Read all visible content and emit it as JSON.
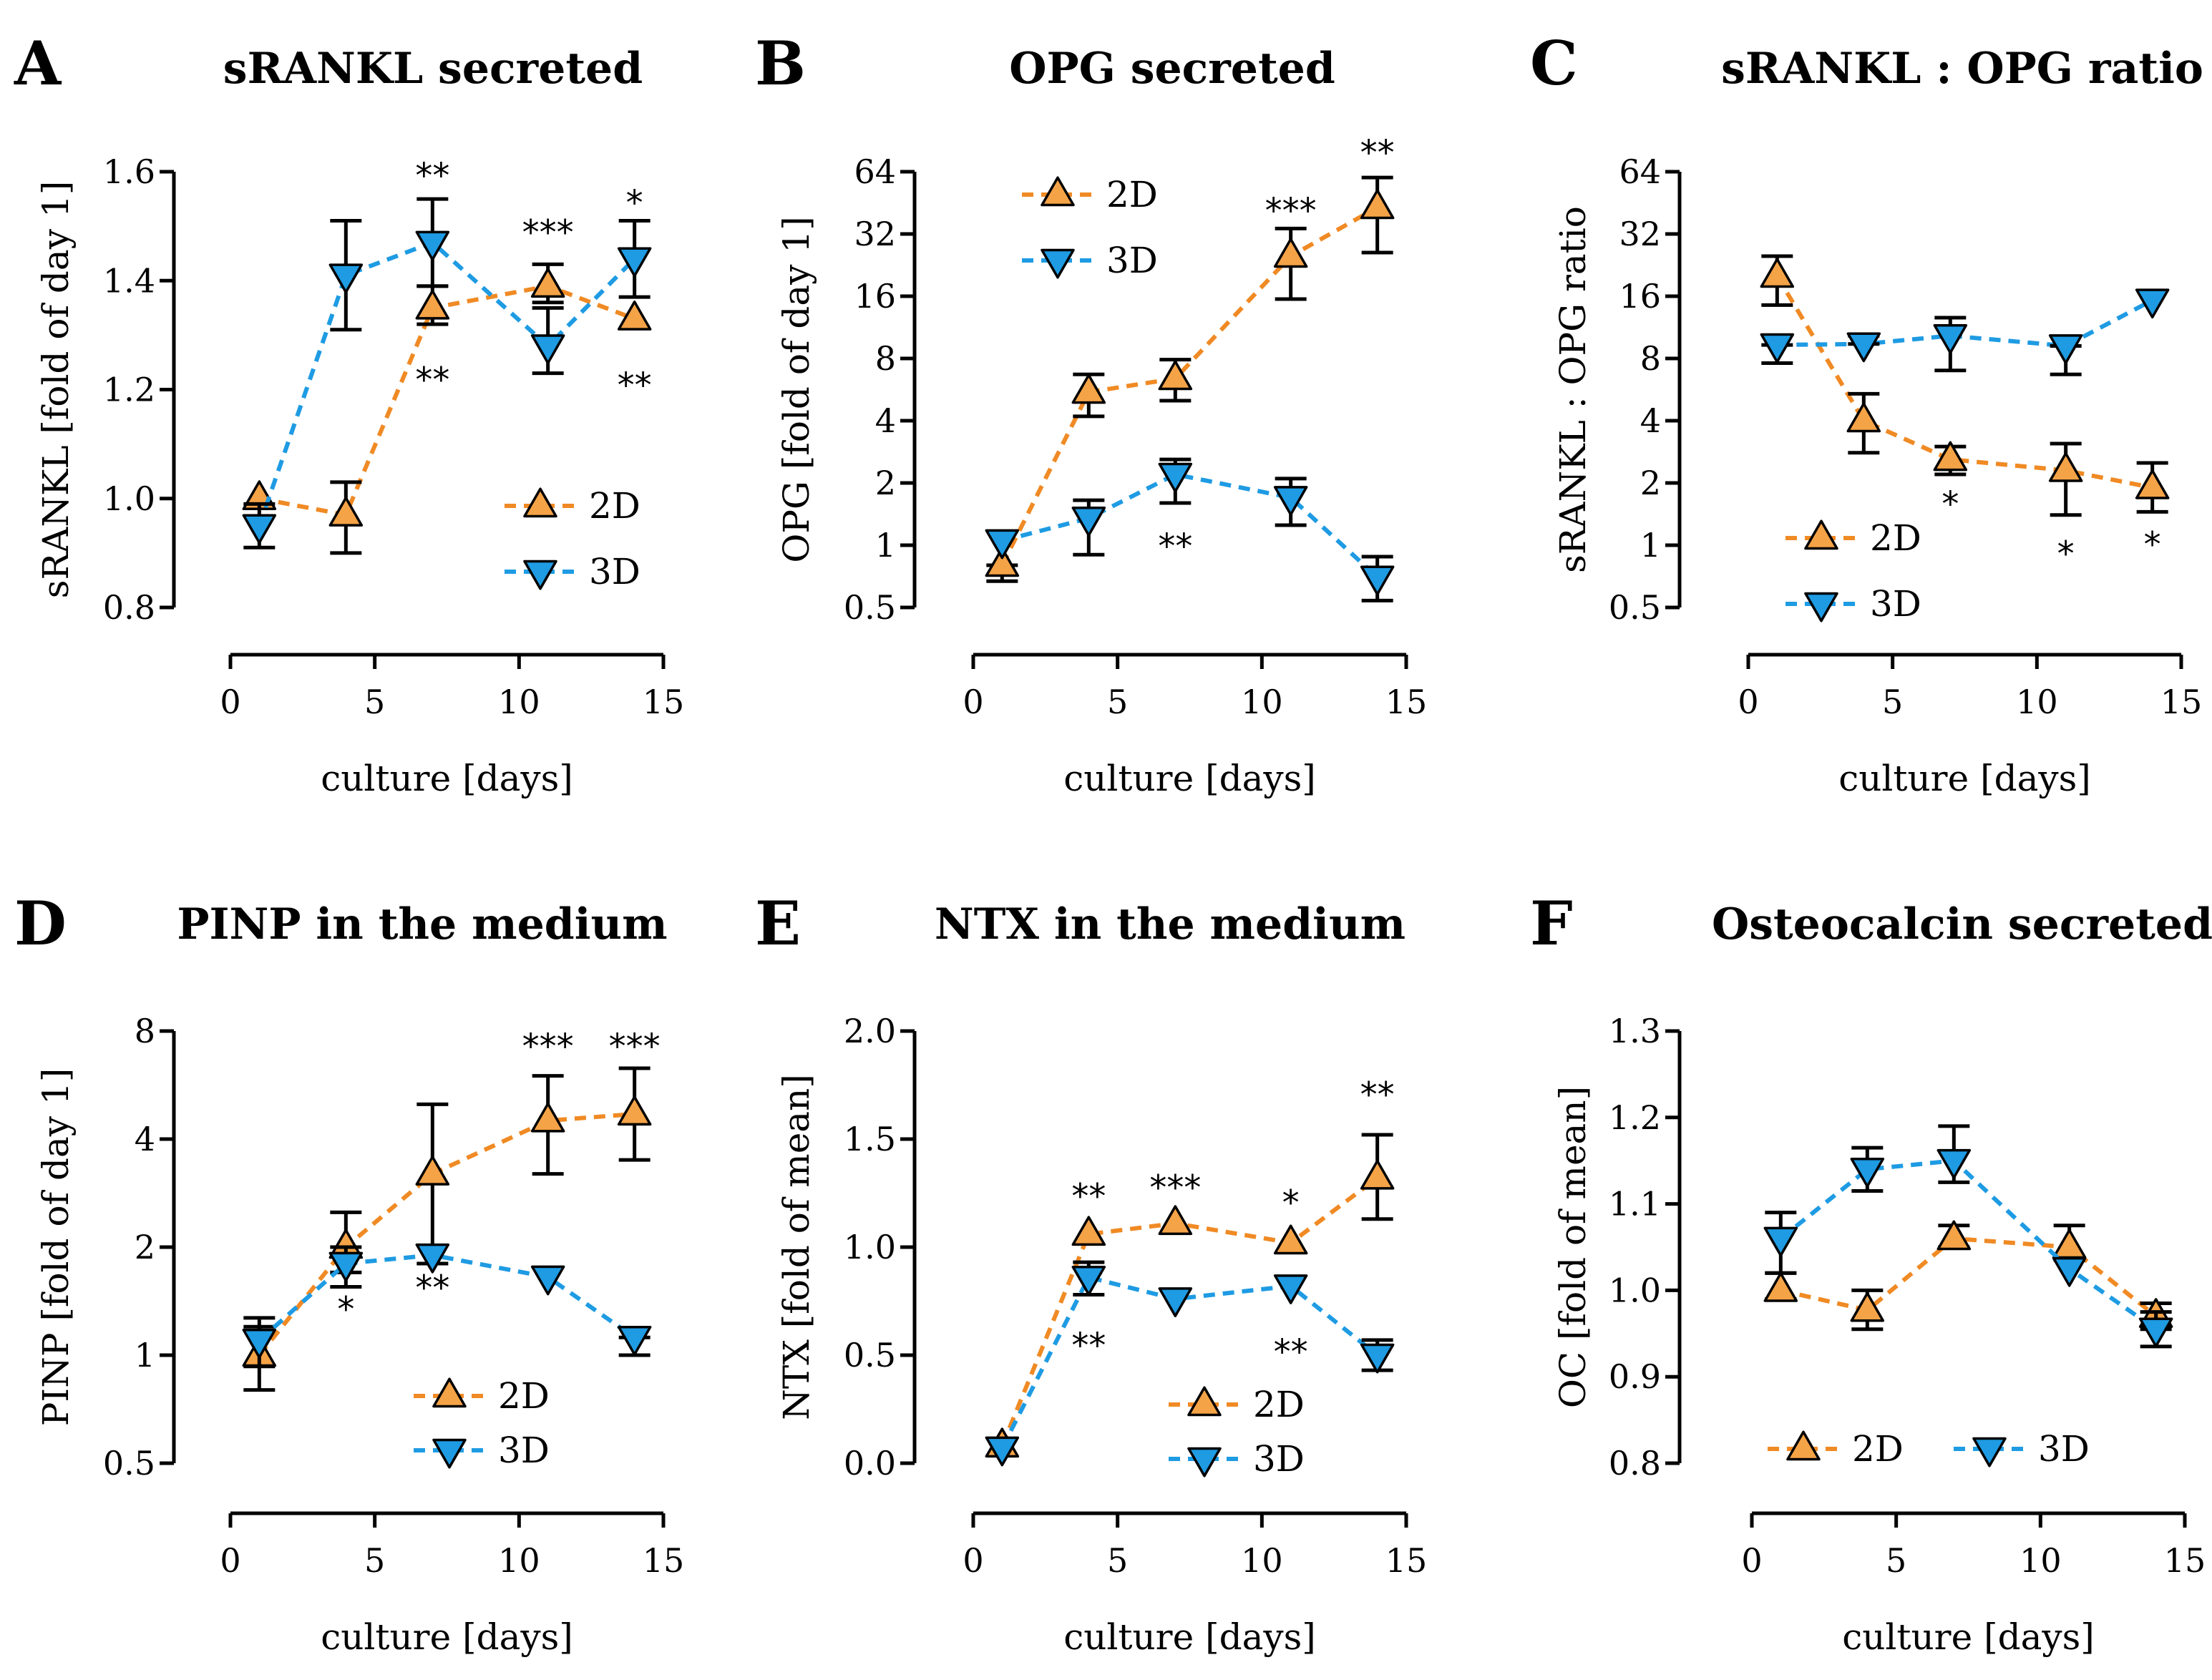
{
  "figure": "Bone marker time courses, 2D vs 3D culture",
  "colors": {
    "2D": "#f5a347",
    "3D": "#1e9be3",
    "line_2D": "#f08a24",
    "line_3D": "#1e9be3",
    "text": "#000000"
  },
  "chart_data": [
    {
      "type": "line",
      "panel": "A",
      "title": "sRANKL secreted",
      "xlabel": "culture [days]",
      "ylabel": "sRANKL [fold of day 1]",
      "xlim": [
        0,
        15
      ],
      "xticks": [
        0,
        5,
        10,
        15
      ],
      "yscale": "linear",
      "ylim": [
        0.8,
        1.6
      ],
      "yticks": [
        0.8,
        1.0,
        1.2,
        1.4,
        1.6
      ],
      "ytick_labels": [
        "0.8",
        "1.0",
        "1.2",
        "1.4",
        "1.6"
      ],
      "legend": "center-right",
      "series": [
        {
          "name": "2D",
          "x": [
            1,
            4,
            7,
            11,
            14
          ],
          "values": [
            1.0,
            0.97,
            1.35,
            1.39,
            1.33
          ],
          "err_low": [
            1.0,
            0.9,
            1.32,
            1.36,
            1.33
          ],
          "err_high": [
            1.0,
            1.03,
            1.39,
            1.43,
            1.33
          ]
        },
        {
          "name": "3D",
          "x": [
            1,
            4,
            7,
            11,
            14
          ],
          "values": [
            0.95,
            1.41,
            1.47,
            1.28,
            1.44
          ],
          "err_low": [
            0.91,
            1.31,
            1.39,
            1.23,
            1.37
          ],
          "err_high": [
            0.99,
            1.51,
            1.55,
            1.35,
            1.51
          ]
        }
      ],
      "annotations": [
        {
          "text": "**",
          "x": 7,
          "y": 1.595
        },
        {
          "text": "**",
          "x": 7,
          "y": 1.22
        },
        {
          "text": "***",
          "x": 11,
          "y": 1.49
        },
        {
          "text": "*",
          "x": 14,
          "y": 1.545
        },
        {
          "text": "**",
          "x": 14,
          "y": 1.21
        }
      ]
    },
    {
      "type": "line",
      "panel": "B",
      "title": "OPG secreted",
      "xlabel": "culture [days]",
      "ylabel": "OPG [fold of day 1]",
      "xlim": [
        0,
        15
      ],
      "xticks": [
        0,
        5,
        10,
        15
      ],
      "yscale": "log2",
      "ylim": [
        0.5,
        64
      ],
      "yticks": [
        0.5,
        1,
        2,
        4,
        8,
        16,
        32,
        64
      ],
      "ytick_labels": [
        "0.5",
        "1",
        "2",
        "4",
        "8",
        "16",
        "32",
        "64"
      ],
      "legend": "top-left",
      "series": [
        {
          "name": "2D",
          "x": [
            1,
            4,
            7,
            11,
            14
          ],
          "values": [
            0.8,
            5.5,
            6.4,
            25,
            43
          ],
          "err_low": [
            0.67,
            4.2,
            5.0,
            15.5,
            26
          ],
          "err_high": [
            0.8,
            6.7,
            7.9,
            34,
            60
          ]
        },
        {
          "name": "3D",
          "x": [
            1,
            4,
            7,
            11,
            14
          ],
          "values": [
            1.05,
            1.35,
            2.2,
            1.7,
            0.7
          ],
          "err_low": [
            1.05,
            0.9,
            1.6,
            1.25,
            0.54
          ],
          "err_high": [
            1.05,
            1.65,
            2.6,
            2.1,
            0.88
          ]
        }
      ],
      "annotations": [
        {
          "text": "**",
          "x": 7,
          "y": 1.0
        },
        {
          "text": "***",
          "x": 11,
          "y": 42
        },
        {
          "text": "**",
          "x": 14,
          "y": 80
        }
      ]
    },
    {
      "type": "line",
      "panel": "C",
      "title": "sRANKL : OPG ratio",
      "xlabel": "culture [days]",
      "ylabel": "sRANKL : OPG ratio",
      "xlim": [
        0,
        15
      ],
      "xticks": [
        0,
        5,
        10,
        15
      ],
      "yscale": "log2",
      "ylim": [
        0.5,
        64
      ],
      "yticks": [
        0.5,
        1,
        2,
        4,
        8,
        16,
        32,
        64
      ],
      "ytick_labels": [
        "0.5",
        "1",
        "2",
        "4",
        "8",
        "16",
        "32",
        "64"
      ],
      "legend": "bottom-left",
      "series": [
        {
          "name": "2D",
          "x": [
            1,
            4,
            7,
            11,
            14
          ],
          "values": [
            20,
            4,
            2.6,
            2.3,
            1.9
          ],
          "err_low": [
            14.5,
            2.8,
            2.2,
            1.4,
            1.45
          ],
          "err_high": [
            25,
            5.4,
            3.0,
            3.1,
            2.5
          ]
        },
        {
          "name": "3D",
          "x": [
            1,
            4,
            7,
            11,
            14
          ],
          "values": [
            9.3,
            9.4,
            10.3,
            9.2,
            15.3
          ],
          "err_low": [
            7.6,
            9.4,
            7.0,
            6.7,
            15.3
          ],
          "err_high": [
            9.3,
            10.3,
            12.6,
            9.2,
            15.3
          ]
        }
      ],
      "annotations": [
        {
          "text": "*",
          "x": 7,
          "y": 1.6
        },
        {
          "text": "*",
          "x": 11,
          "y": 0.92
        },
        {
          "text": "*",
          "x": 14,
          "y": 1.02
        }
      ]
    },
    {
      "type": "line",
      "panel": "D",
      "title": "PINP in the medium",
      "xlabel": "culture [days]",
      "ylabel": "PINP [fold of day 1]",
      "xlim": [
        0,
        15
      ],
      "xticks": [
        0,
        5,
        10,
        15
      ],
      "yscale": "log2",
      "ylim": [
        0.5,
        8
      ],
      "yticks": [
        0.5,
        1,
        2,
        4,
        8
      ],
      "ytick_labels": [
        "0.5",
        "1",
        "2",
        "4",
        "8"
      ],
      "legend": "bottom-right",
      "series": [
        {
          "name": "2D",
          "x": [
            1,
            4,
            7,
            11,
            14
          ],
          "values": [
            1.0,
            2.0,
            3.2,
            4.5,
            4.7
          ],
          "err_low": [
            0.8,
            1.7,
            1.8,
            3.2,
            3.5
          ],
          "err_high": [
            1.2,
            2.5,
            5.0,
            6.0,
            6.3
          ]
        },
        {
          "name": "3D",
          "x": [
            1,
            4,
            7,
            11,
            14
          ],
          "values": [
            1.1,
            1.8,
            1.9,
            1.65,
            1.12
          ],
          "err_low": [
            0.93,
            1.55,
            1.9,
            1.65,
            1.0
          ],
          "err_high": [
            1.27,
            2.0,
            1.9,
            1.65,
            1.12
          ]
        }
      ],
      "annotations": [
        {
          "text": "*",
          "x": 4,
          "y": 1.35
        },
        {
          "text": "**",
          "x": 7,
          "y": 1.55
        },
        {
          "text": "***",
          "x": 11,
          "y": 7.3
        },
        {
          "text": "***",
          "x": 14,
          "y": 7.3
        }
      ]
    },
    {
      "type": "line",
      "panel": "E",
      "title": "NTX in the medium",
      "xlabel": "culture [days]",
      "ylabel": "NTX [fold of mean]",
      "xlim": [
        0,
        15
      ],
      "xticks": [
        0,
        5,
        10,
        15
      ],
      "yscale": "linear",
      "ylim": [
        0.0,
        2.0
      ],
      "yticks": [
        0.0,
        0.5,
        1.0,
        1.5,
        2.0
      ],
      "ytick_labels": [
        "0.0",
        "0.5",
        "1.0",
        "1.5",
        "2.0"
      ],
      "legend": "bottom-right",
      "series": [
        {
          "name": "2D",
          "x": [
            1,
            4,
            7,
            11,
            14
          ],
          "values": [
            0.08,
            1.06,
            1.11,
            1.02,
            1.32
          ],
          "err_low": [
            0.08,
            1.06,
            1.11,
            1.02,
            1.13
          ],
          "err_high": [
            0.08,
            1.06,
            1.11,
            1.02,
            1.52
          ]
        },
        {
          "name": "3D",
          "x": [
            1,
            4,
            7,
            11,
            14
          ],
          "values": [
            0.07,
            0.86,
            0.76,
            0.82,
            0.5
          ],
          "err_low": [
            0.07,
            0.78,
            0.76,
            0.82,
            0.43
          ],
          "err_high": [
            0.07,
            0.93,
            0.76,
            0.82,
            0.57
          ]
        }
      ],
      "annotations": [
        {
          "text": "**",
          "x": 4,
          "y": 1.24
        },
        {
          "text": "***",
          "x": 7,
          "y": 1.28
        },
        {
          "text": "*",
          "x": 11,
          "y": 1.21
        },
        {
          "text": "**",
          "x": 14,
          "y": 1.71
        },
        {
          "text": "**",
          "x": 4,
          "y": 0.55
        },
        {
          "text": "**",
          "x": 11,
          "y": 0.52
        }
      ]
    },
    {
      "type": "line",
      "panel": "F",
      "title": "Osteocalcin secreted",
      "xlabel": "culture [days]",
      "ylabel": "OC [fold of mean]",
      "xlim": [
        0,
        15
      ],
      "xticks": [
        0,
        5,
        10,
        15
      ],
      "yscale": "linear",
      "ylim": [
        0.8,
        1.3
      ],
      "yticks": [
        0.8,
        0.9,
        1.0,
        1.1,
        1.2,
        1.3
      ],
      "ytick_labels": [
        "0.8",
        "0.9",
        "1.0",
        "1.1",
        "1.2",
        "1.3"
      ],
      "legend": "bottom-left",
      "series": [
        {
          "name": "2D",
          "x": [
            1,
            4,
            7,
            11,
            14
          ],
          "values": [
            1.0,
            0.977,
            1.06,
            1.05,
            0.97
          ],
          "err_low": [
            0.99,
            0.955,
            1.05,
            1.035,
            0.955
          ],
          "err_high": [
            1.02,
            1.0,
            1.075,
            1.075,
            0.985
          ]
        },
        {
          "name": "3D",
          "x": [
            1,
            4,
            7,
            11,
            14
          ],
          "values": [
            1.06,
            1.14,
            1.15,
            1.025,
            0.955
          ],
          "err_low": [
            1.02,
            1.115,
            1.125,
            1.025,
            0.935
          ],
          "err_high": [
            1.09,
            1.165,
            1.19,
            1.025,
            0.975
          ]
        }
      ],
      "annotations": []
    }
  ]
}
